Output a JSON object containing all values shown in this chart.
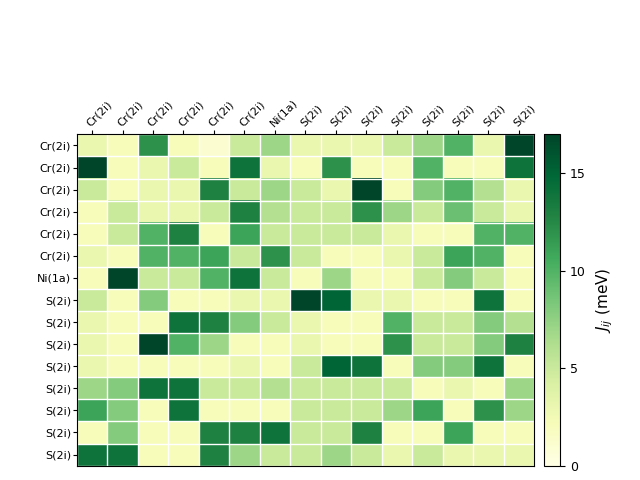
{
  "labels": [
    "Cr(2i)",
    "Cr(2i)",
    "Cr(2i)",
    "Cr(2i)",
    "Cr(2i)",
    "Cr(2i)",
    "Ni(1a)",
    "S(2i)",
    "S(2i)",
    "S(2i)",
    "S(2i)",
    "S(2i)",
    "S(2i)",
    "S(2i)",
    "S(2i)"
  ],
  "matrix": [
    [
      3,
      2,
      12,
      2,
      1,
      5,
      7,
      3,
      3,
      3,
      5,
      7,
      10,
      3,
      17
    ],
    [
      17,
      2,
      3,
      5,
      2,
      14,
      3,
      2,
      12,
      2,
      2,
      10,
      2,
      2,
      14
    ],
    [
      5,
      2,
      3,
      3,
      13,
      5,
      7,
      5,
      3,
      17,
      2,
      8,
      10,
      6,
      3
    ],
    [
      2,
      5,
      3,
      3,
      5,
      13,
      6,
      5,
      5,
      12,
      7,
      5,
      9,
      5,
      3
    ],
    [
      2,
      5,
      10,
      13,
      2,
      11,
      5,
      5,
      5,
      5,
      3,
      2,
      2,
      10,
      10
    ],
    [
      3,
      2,
      10,
      10,
      11,
      5,
      12,
      5,
      2,
      2,
      3,
      5,
      11,
      10,
      2
    ],
    [
      2,
      17,
      5,
      5,
      10,
      14,
      5,
      2,
      7,
      2,
      2,
      5,
      8,
      5,
      2
    ],
    [
      5,
      2,
      8,
      2,
      2,
      3,
      3,
      17,
      15,
      3,
      3,
      2,
      2,
      14,
      2
    ],
    [
      3,
      2,
      2,
      14,
      13,
      8,
      5,
      3,
      2,
      2,
      10,
      5,
      5,
      8,
      6
    ],
    [
      3,
      2,
      17,
      10,
      7,
      2,
      2,
      3,
      2,
      2,
      12,
      5,
      5,
      8,
      13
    ],
    [
      3,
      2,
      2,
      2,
      2,
      3,
      2,
      5,
      15,
      14,
      2,
      8,
      8,
      14,
      2
    ],
    [
      7,
      8,
      14,
      14,
      5,
      5,
      6,
      5,
      5,
      5,
      5,
      2,
      3,
      2,
      7
    ],
    [
      11,
      8,
      2,
      14,
      2,
      2,
      2,
      5,
      5,
      5,
      7,
      11,
      2,
      12,
      7
    ],
    [
      2,
      8,
      2,
      2,
      13,
      13,
      14,
      5,
      5,
      13,
      2,
      2,
      11,
      2,
      2
    ],
    [
      14,
      14,
      2,
      2,
      13,
      7,
      5,
      5,
      7,
      5,
      3,
      5,
      3,
      3,
      3
    ]
  ],
  "vmin": 0,
  "vmax": 17,
  "cmap": "YlGn",
  "colorbar_label": "$J_{ij}$ (meV)",
  "colorbar_ticks": [
    0,
    5,
    10,
    15
  ],
  "figsize": [
    6.4,
    4.8
  ],
  "dpi": 100
}
